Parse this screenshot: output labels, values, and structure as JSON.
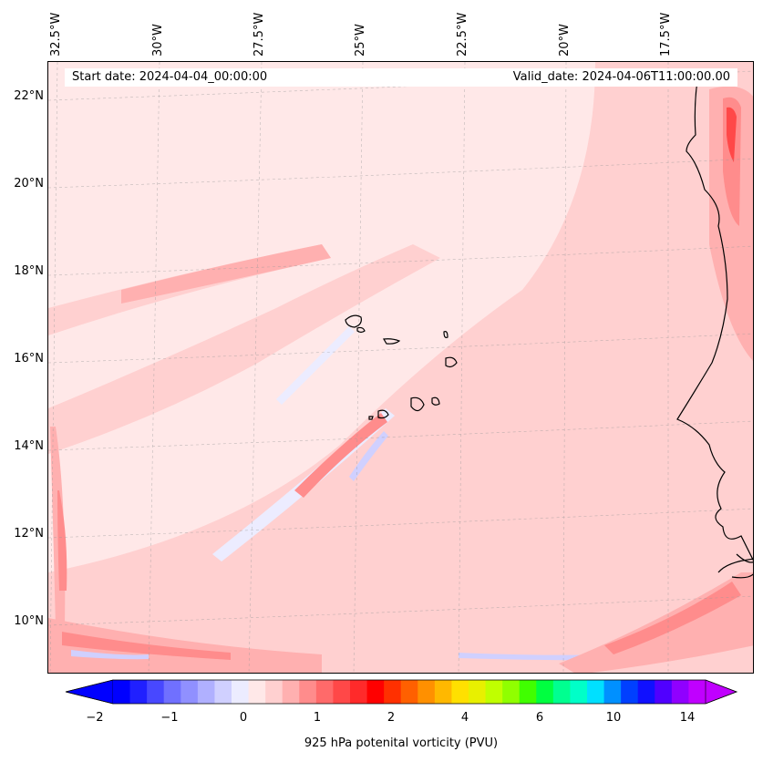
{
  "map": {
    "start_date": "Start date: 2024-04-04_00:00:00",
    "valid_date": "Valid_date: 2024-04-06T11:00:00.00",
    "lon_labels": [
      "32.5°W",
      "30°W",
      "27.5°W",
      "25°W",
      "22.5°W",
      "20°W",
      "17.5°W"
    ],
    "lat_labels": [
      "22°N",
      "20°N",
      "18°N",
      "16°N",
      "14°N",
      "12°N",
      "10°N"
    ],
    "colorbar": {
      "label": "925 hPa potenital vorticity (PVU)",
      "ticks": [
        "−2",
        "−1",
        "0",
        "1",
        "2",
        "4",
        "6",
        "10",
        "14"
      ],
      "colors": [
        "#0000ff",
        "#2020ff",
        "#4848ff",
        "#7070ff",
        "#9090ff",
        "#b0b0ff",
        "#d0d0ff",
        "#ececff",
        "#ffe8e8",
        "#ffd0d0",
        "#ffb0b0",
        "#ff8c8c",
        "#ff6a6a",
        "#ff4848",
        "#ff2a2a",
        "#ff0000",
        "#ff3000",
        "#ff6000",
        "#ff9000",
        "#ffb800",
        "#ffe000",
        "#e8f000",
        "#c0ff00",
        "#90ff00",
        "#40ff00",
        "#00ff40",
        "#00ff90",
        "#00ffc8",
        "#00e0ff",
        "#0090ff",
        "#0040ff",
        "#1010ff",
        "#5000ff",
        "#9000ff",
        "#c000ff"
      ]
    }
  }
}
